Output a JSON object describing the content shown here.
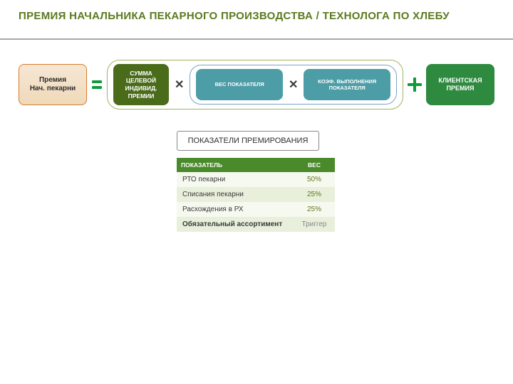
{
  "title": "ПРЕМИЯ НАЧАЛЬНИКА ПЕКАРНОГО ПРОИЗВОДСТВА / ТЕХНОЛОГА ПО ХЛЕБУ",
  "formula": {
    "result": "Премия\nНач. пекарни",
    "sum_individual": "СУММА ЦЕЛЕВОЙ ИНДИВИД. ПРЕМИИ",
    "weight": "ВЕС ПОКАЗАТЕЛЯ",
    "coef": "КОЭФ. ВЫПОЛНЕНИЯ ПОКАЗАТЕЛЯ",
    "client": "КЛИЕНТСКАЯ ПРЕМИЯ"
  },
  "section_label": "ПОКАЗАТЕЛИ ПРЕМИРОВАНИЯ",
  "table": {
    "col1": "ПОКАЗАТЕЛЬ",
    "col2": "ВЕС",
    "rows": [
      {
        "name": "РТО пекарни",
        "weight": "50%"
      },
      {
        "name": "Списания пекарни",
        "weight": "25%"
      },
      {
        "name": "Расхождения в РХ",
        "weight": "25%"
      },
      {
        "name": "Обязательный ассортимент",
        "weight": "Триггер"
      }
    ]
  },
  "colors": {
    "title": "#5b7a1e",
    "underline": "#a8a8a8",
    "orange_border": "#d87b2a",
    "green_dark": "#4a6b1a",
    "teal": "#4d9da6",
    "green": "#2d8a3e",
    "accent_green": "#0f9a3c",
    "table_header": "#4a8a2a",
    "row_even": "#e8efdb",
    "row_odd": "#f6f9ef"
  }
}
